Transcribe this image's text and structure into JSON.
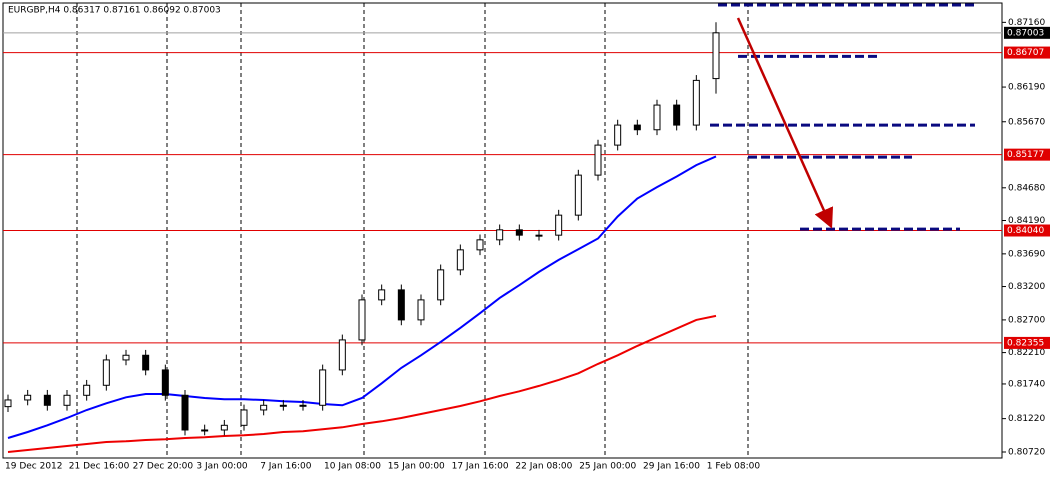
{
  "chart_data": {
    "type": "candlestick",
    "title": "EURGBP,H4  0.86317 0.87161 0.86092 0.87003",
    "x_labels": [
      "19 Dec 2012",
      "21 Dec 16:00",
      "27 Dec 20:00",
      "3 Jan 00:00",
      "7 Jan 16:00",
      "10 Jan 08:00",
      "15 Jan 00:00",
      "17 Jan 16:00",
      "22 Jan 08:00",
      "25 Jan 00:00",
      "29 Jan 16:00",
      "1 Feb 08:00"
    ],
    "open": [
      0.814,
      0.815,
      0.8157,
      0.8142,
      0.8157,
      0.8172,
      0.821,
      0.8217,
      0.8195,
      0.8157,
      0.8105,
      0.8105,
      0.8112,
      0.8135,
      0.8142,
      0.8142,
      0.8142,
      0.8195,
      0.824,
      0.83,
      0.8315,
      0.827,
      0.83,
      0.8345,
      0.8375,
      0.839,
      0.8405,
      0.8397,
      0.8397,
      0.8427,
      0.8487,
      0.8532,
      0.8562,
      0.8555,
      0.8592,
      0.8562,
      0.86317
    ],
    "high": [
      0.8158,
      0.8165,
      0.8165,
      0.8165,
      0.818,
      0.8218,
      0.8225,
      0.8225,
      0.8203,
      0.8165,
      0.8113,
      0.812,
      0.8143,
      0.815,
      0.815,
      0.815,
      0.8203,
      0.8248,
      0.8308,
      0.8323,
      0.8323,
      0.8308,
      0.8353,
      0.8383,
      0.8398,
      0.8413,
      0.8413,
      0.8405,
      0.8435,
      0.8495,
      0.854,
      0.857,
      0.857,
      0.86,
      0.86,
      0.8637,
      0.87161
    ],
    "low": [
      0.8132,
      0.8142,
      0.8134,
      0.8134,
      0.8149,
      0.8164,
      0.8202,
      0.8187,
      0.8149,
      0.8097,
      0.8097,
      0.8097,
      0.8104,
      0.8127,
      0.8134,
      0.8134,
      0.8134,
      0.8187,
      0.8232,
      0.8292,
      0.8262,
      0.8262,
      0.8292,
      0.8337,
      0.8367,
      0.8382,
      0.8389,
      0.8389,
      0.8389,
      0.8419,
      0.8479,
      0.8524,
      0.8547,
      0.8547,
      0.8554,
      0.8554,
      0.86092
    ],
    "close": [
      0.815,
      0.8157,
      0.8142,
      0.8157,
      0.8172,
      0.821,
      0.8217,
      0.8195,
      0.8157,
      0.8105,
      0.8105,
      0.8112,
      0.8135,
      0.8142,
      0.8142,
      0.8142,
      0.8195,
      0.824,
      0.83,
      0.8315,
      0.827,
      0.83,
      0.8345,
      0.8375,
      0.839,
      0.8405,
      0.8397,
      0.8397,
      0.8427,
      0.8487,
      0.8532,
      0.8562,
      0.8555,
      0.8592,
      0.8562,
      0.8629,
      0.87003
    ],
    "series": [
      {
        "color": "#0000ff",
        "values": [
          0.8093,
          0.8102,
          0.8112,
          0.8123,
          0.8135,
          0.8145,
          0.8154,
          0.8159,
          0.8159,
          0.8156,
          0.8153,
          0.8151,
          0.8151,
          0.815,
          0.8148,
          0.8147,
          0.8144,
          0.8142,
          0.8153,
          0.8175,
          0.8198,
          0.8217,
          0.8237,
          0.8258,
          0.828,
          0.8303,
          0.8322,
          0.8342,
          0.836,
          0.8376,
          0.8392,
          0.8425,
          0.8452,
          0.8469,
          0.8485,
          0.8502,
          0.8515
        ]
      },
      {
        "color": "#ee0000",
        "values": [
          0.8072,
          0.8075,
          0.8078,
          0.8081,
          0.8084,
          0.8087,
          0.8088,
          0.809,
          0.8091,
          0.8093,
          0.8094,
          0.8096,
          0.8097,
          0.8099,
          0.8102,
          0.8103,
          0.8106,
          0.8109,
          0.8114,
          0.8118,
          0.8123,
          0.8129,
          0.8135,
          0.8141,
          0.8148,
          0.8156,
          0.8163,
          0.8171,
          0.818,
          0.819,
          0.8204,
          0.8217,
          0.8231,
          0.8244,
          0.8257,
          0.827,
          0.8276
        ]
      }
    ],
    "current_price": 0.87003,
    "hlines": [
      {
        "value": 0.86707,
        "label": "0.86707"
      },
      {
        "value": 0.85177,
        "label": "0.85177"
      },
      {
        "value": 0.8404,
        "label": "0.84040"
      },
      {
        "value": 0.82355,
        "label": "0.82355"
      }
    ],
    "levels": [
      0.8742,
      0.8665,
      0.8562,
      0.8514,
      0.8406
    ],
    "ylim": [
      0.8063,
      0.8745
    ],
    "yticks": [
      {
        "value": 0.8716,
        "label": "0.87160"
      },
      {
        "value": 0.8619,
        "label": "0.86190"
      },
      {
        "value": 0.8567,
        "label": "0.85670"
      },
      {
        "value": 0.8468,
        "label": "0.84680"
      },
      {
        "value": 0.8419,
        "label": "0.84190"
      },
      {
        "value": 0.8369,
        "label": "0.83690"
      },
      {
        "value": 0.832,
        "label": "0.83200"
      },
      {
        "value": 0.827,
        "label": "0.82700"
      },
      {
        "value": 0.8221,
        "label": "0.82210"
      },
      {
        "value": 0.8174,
        "label": "0.81740"
      },
      {
        "value": 0.8122,
        "label": "0.81220"
      },
      {
        "value": 0.8072,
        "label": "0.80720"
      }
    ]
  }
}
